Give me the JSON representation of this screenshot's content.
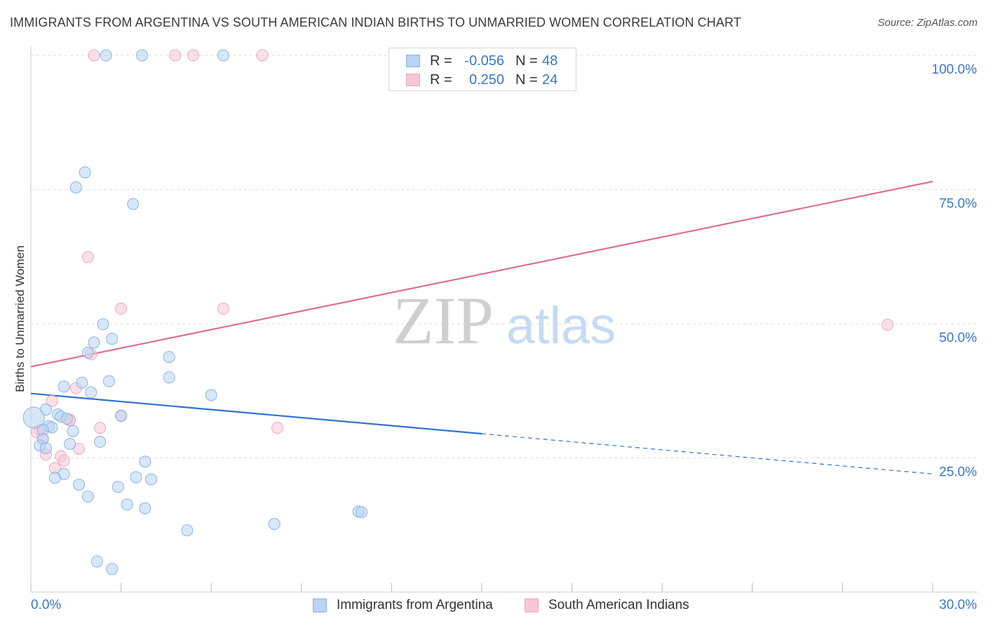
{
  "header": {
    "title": "IMMIGRANTS FROM ARGENTINA VS SOUTH AMERICAN INDIAN BIRTHS TO UNMARRIED WOMEN CORRELATION CHART",
    "source": "Source: ZipAtlas.com"
  },
  "watermark": {
    "zip": "ZIP",
    "atlas": "atlas"
  },
  "legend": {
    "rows": [
      {
        "r_label": "R =",
        "r_value": "-0.056",
        "n_label": "N =",
        "n_value": "48"
      },
      {
        "r_label": "R =",
        "r_value": "0.250",
        "n_label": "N =",
        "n_value": "24"
      }
    ]
  },
  "colors": {
    "blue_fill": "#b8d3f3",
    "blue_stroke": "#8ab3e6",
    "blue_line": "#2f73d0",
    "pink_fill": "#f8c6d6",
    "pink_stroke": "#eea7bd",
    "pink_line": "#e06d96",
    "tick_text": "#3a77c8",
    "grid": "#dedede"
  },
  "chart_data": {
    "type": "scatter",
    "title": "IMMIGRANTS FROM ARGENTINA VS SOUTH AMERICAN INDIAN BIRTHS TO UNMARRIED WOMEN CORRELATION CHART",
    "xlabel": "",
    "ylabel": "Births to Unmarried Women",
    "xlim": [
      0,
      30
    ],
    "ylim": [
      0,
      100
    ],
    "x_tick_labels": [
      "0.0%",
      "30.0%"
    ],
    "y_ticks": [
      25,
      50,
      75,
      100
    ],
    "y_tick_labels": [
      "25.0%",
      "50.0%",
      "75.0%",
      "100.0%"
    ],
    "grid": true,
    "series": [
      {
        "name": "Immigrants from Argentina",
        "color": "#b8d3f3",
        "r": -0.056,
        "n": 48,
        "trend": {
          "x0": 0,
          "y0": 37.0,
          "x1": 15,
          "y1": 29.5,
          "dashed_to_x": 30,
          "dashed_to_y": 22.0
        },
        "points": [
          [
            2.5,
            100
          ],
          [
            3.7,
            100
          ],
          [
            6.4,
            100
          ],
          [
            1.8,
            78.2
          ],
          [
            1.5,
            75.4
          ],
          [
            3.4,
            72.3
          ],
          [
            2.4,
            49.9
          ],
          [
            2.7,
            47.2
          ],
          [
            2.1,
            46.5
          ],
          [
            1.9,
            44.6
          ],
          [
            4.6,
            43.8
          ],
          [
            4.6,
            40.0
          ],
          [
            2.6,
            39.3
          ],
          [
            1.7,
            39.0
          ],
          [
            1.1,
            38.3
          ],
          [
            2.0,
            37.2
          ],
          [
            6.0,
            36.7
          ],
          [
            0.5,
            34.0
          ],
          [
            0.9,
            33.1
          ],
          [
            1.0,
            32.7
          ],
          [
            3.0,
            32.8
          ],
          [
            1.2,
            32.3
          ],
          [
            0.6,
            30.9
          ],
          [
            0.7,
            30.7
          ],
          [
            1.4,
            30.0
          ],
          [
            0.4,
            30.2
          ],
          [
            0.4,
            28.5
          ],
          [
            2.3,
            28.0
          ],
          [
            1.3,
            27.6
          ],
          [
            0.3,
            27.3
          ],
          [
            0.5,
            26.8
          ],
          [
            3.8,
            24.3
          ],
          [
            1.1,
            22.0
          ],
          [
            0.8,
            21.3
          ],
          [
            3.5,
            21.4
          ],
          [
            4.0,
            21.0
          ],
          [
            1.6,
            20.0
          ],
          [
            2.9,
            19.6
          ],
          [
            1.9,
            17.8
          ],
          [
            3.2,
            16.3
          ],
          [
            3.8,
            15.6
          ],
          [
            10.9,
            15.0
          ],
          [
            11.0,
            14.9
          ],
          [
            8.1,
            12.7
          ],
          [
            5.2,
            11.5
          ],
          [
            2.2,
            5.7
          ],
          [
            2.7,
            4.3
          ],
          [
            0.1,
            32.5
          ]
        ]
      },
      {
        "name": "South American Indians",
        "color": "#f8c6d6",
        "r": 0.25,
        "n": 24,
        "trend": {
          "x0": 0,
          "y0": 42.0,
          "x1": 30,
          "y1": 76.5
        },
        "points": [
          [
            2.1,
            100
          ],
          [
            4.8,
            100
          ],
          [
            5.4,
            100
          ],
          [
            7.7,
            100
          ],
          [
            1.9,
            62.4
          ],
          [
            3.0,
            52.8
          ],
          [
            6.4,
            52.8
          ],
          [
            28.5,
            49.8
          ],
          [
            2.0,
            44.3
          ],
          [
            1.5,
            38.0
          ],
          [
            0.7,
            35.6
          ],
          [
            3.0,
            32.9
          ],
          [
            1.3,
            32.1
          ],
          [
            0.3,
            30.2
          ],
          [
            2.3,
            30.6
          ],
          [
            8.2,
            30.6
          ],
          [
            0.4,
            28.6
          ],
          [
            1.6,
            26.7
          ],
          [
            0.5,
            25.6
          ],
          [
            1.0,
            25.3
          ],
          [
            1.1,
            24.5
          ],
          [
            0.8,
            23.1
          ],
          [
            0.2,
            29.8
          ],
          [
            1.3,
            32.0
          ]
        ]
      }
    ]
  }
}
